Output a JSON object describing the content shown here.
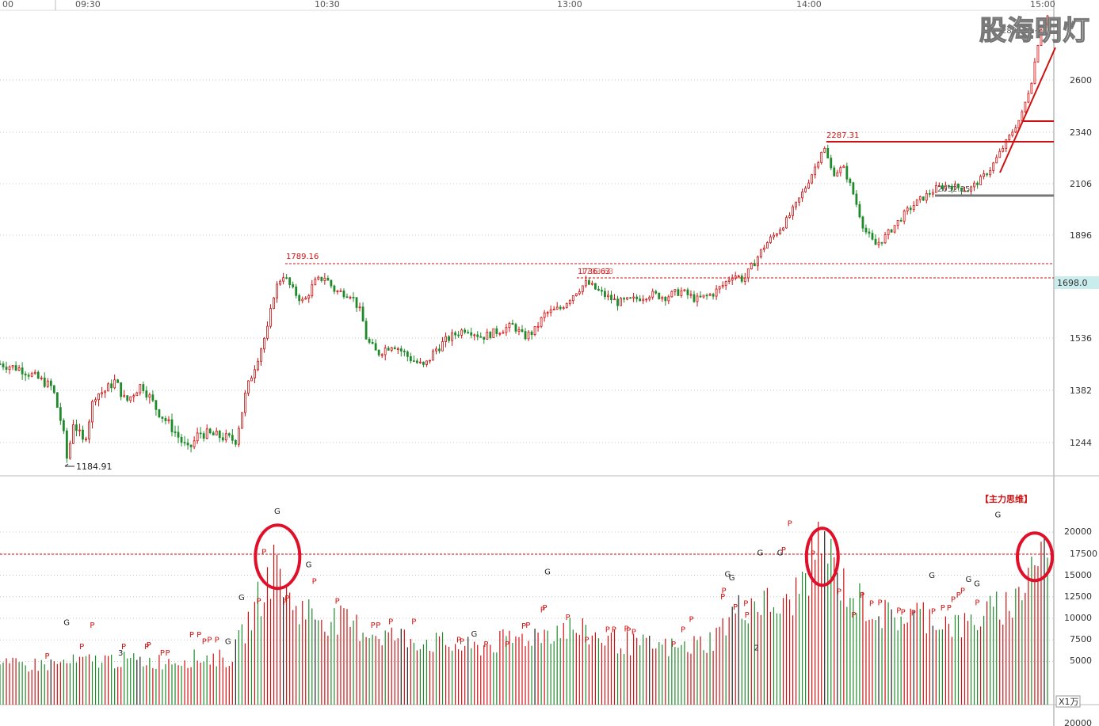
{
  "watermark": "股海明灯",
  "chart_data": {
    "type": "candlestick",
    "time_labels": [
      "00",
      "09:30",
      "10:30",
      "13:00",
      "14:00",
      "15:00"
    ],
    "price_axis": {
      "ticks": [
        1244,
        1382,
        1536,
        1896,
        2106,
        2340,
        2600
      ],
      "min": 1140,
      "max": 2950,
      "current_label": "1698.0"
    },
    "price_annotations": {
      "low": "1184.91",
      "high1": "1789.16",
      "mid_level": "1736.63",
      "mid_level2": "1733.63",
      "high2": "2287.31",
      "support": "2052.35",
      "top": "2885.31→"
    },
    "price_path": [
      {
        "t": 0,
        "p": 1460
      },
      {
        "t": 0.02,
        "p": 1445
      },
      {
        "t": 0.04,
        "p": 1410
      },
      {
        "t": 0.05,
        "p": 1390
      },
      {
        "t": 0.06,
        "p": 1280
      },
      {
        "t": 0.064,
        "p": 1190
      },
      {
        "t": 0.07,
        "p": 1300
      },
      {
        "t": 0.08,
        "p": 1240
      },
      {
        "t": 0.09,
        "p": 1370
      },
      {
        "t": 0.1,
        "p": 1380
      },
      {
        "t": 0.11,
        "p": 1410
      },
      {
        "t": 0.12,
        "p": 1350
      },
      {
        "t": 0.135,
        "p": 1400
      },
      {
        "t": 0.15,
        "p": 1330
      },
      {
        "t": 0.165,
        "p": 1280
      },
      {
        "t": 0.18,
        "p": 1220
      },
      {
        "t": 0.19,
        "p": 1270
      },
      {
        "t": 0.21,
        "p": 1260
      },
      {
        "t": 0.225,
        "p": 1250
      },
      {
        "t": 0.235,
        "p": 1380
      },
      {
        "t": 0.245,
        "p": 1470
      },
      {
        "t": 0.255,
        "p": 1560
      },
      {
        "t": 0.262,
        "p": 1700
      },
      {
        "t": 0.27,
        "p": 1760
      },
      {
        "t": 0.28,
        "p": 1700
      },
      {
        "t": 0.29,
        "p": 1660
      },
      {
        "t": 0.3,
        "p": 1730
      },
      {
        "t": 0.31,
        "p": 1750
      },
      {
        "t": 0.32,
        "p": 1700
      },
      {
        "t": 0.335,
        "p": 1690
      },
      {
        "t": 0.345,
        "p": 1620
      },
      {
        "t": 0.35,
        "p": 1530
      },
      {
        "t": 0.36,
        "p": 1490
      },
      {
        "t": 0.375,
        "p": 1520
      },
      {
        "t": 0.39,
        "p": 1480
      },
      {
        "t": 0.405,
        "p": 1450
      },
      {
        "t": 0.415,
        "p": 1500
      },
      {
        "t": 0.43,
        "p": 1540
      },
      {
        "t": 0.445,
        "p": 1570
      },
      {
        "t": 0.46,
        "p": 1540
      },
      {
        "t": 0.475,
        "p": 1560
      },
      {
        "t": 0.49,
        "p": 1580
      },
      {
        "t": 0.5,
        "p": 1540
      },
      {
        "t": 0.51,
        "p": 1560
      },
      {
        "t": 0.52,
        "p": 1620
      },
      {
        "t": 0.535,
        "p": 1640
      },
      {
        "t": 0.55,
        "p": 1700
      },
      {
        "t": 0.56,
        "p": 1730
      },
      {
        "t": 0.575,
        "p": 1690
      },
      {
        "t": 0.59,
        "p": 1660
      },
      {
        "t": 0.605,
        "p": 1670
      },
      {
        "t": 0.62,
        "p": 1690
      },
      {
        "t": 0.635,
        "p": 1680
      },
      {
        "t": 0.65,
        "p": 1700
      },
      {
        "t": 0.665,
        "p": 1670
      },
      {
        "t": 0.68,
        "p": 1690
      },
      {
        "t": 0.69,
        "p": 1720
      },
      {
        "t": 0.7,
        "p": 1760
      },
      {
        "t": 0.71,
        "p": 1740
      },
      {
        "t": 0.72,
        "p": 1800
      },
      {
        "t": 0.73,
        "p": 1860
      },
      {
        "t": 0.74,
        "p": 1900
      },
      {
        "t": 0.75,
        "p": 1950
      },
      {
        "t": 0.76,
        "p": 2020
      },
      {
        "t": 0.77,
        "p": 2100
      },
      {
        "t": 0.78,
        "p": 2200
      },
      {
        "t": 0.786,
        "p": 2280
      },
      {
        "t": 0.795,
        "p": 2150
      },
      {
        "t": 0.805,
        "p": 2180
      },
      {
        "t": 0.815,
        "p": 2060
      },
      {
        "t": 0.825,
        "p": 1920
      },
      {
        "t": 0.835,
        "p": 1860
      },
      {
        "t": 0.845,
        "p": 1890
      },
      {
        "t": 0.855,
        "p": 1940
      },
      {
        "t": 0.865,
        "p": 1990
      },
      {
        "t": 0.875,
        "p": 2030
      },
      {
        "t": 0.885,
        "p": 2060
      },
      {
        "t": 0.895,
        "p": 2090
      },
      {
        "t": 0.905,
        "p": 2100
      },
      {
        "t": 0.915,
        "p": 2090
      },
      {
        "t": 0.925,
        "p": 2080
      },
      {
        "t": 0.935,
        "p": 2120
      },
      {
        "t": 0.945,
        "p": 2170
      },
      {
        "t": 0.955,
        "p": 2250
      },
      {
        "t": 0.965,
        "p": 2330
      },
      {
        "t": 0.975,
        "p": 2420
      },
      {
        "t": 0.985,
        "p": 2600
      },
      {
        "t": 0.993,
        "p": 2820
      },
      {
        "t": 1,
        "p": 2880
      }
    ],
    "volume_axis": {
      "ticks": [
        5000,
        7500,
        10000,
        12500,
        15000,
        17500,
        20000
      ],
      "tick_labels": [
        "5000",
        "7500",
        "10000",
        "12500",
        "15000",
        "17500",
        "20000"
      ],
      "unit": "X1万",
      "min": 0,
      "max": 25000,
      "bottom_cut_label": "20000"
    },
    "volume_title": "【主力思维】",
    "volume_path": [
      {
        "t": 0,
        "v": 4500
      },
      {
        "t": 0.05,
        "v": 4700
      },
      {
        "t": 0.1,
        "v": 5200
      },
      {
        "t": 0.15,
        "v": 5000
      },
      {
        "t": 0.2,
        "v": 5500
      },
      {
        "t": 0.22,
        "v": 5200
      },
      {
        "t": 0.235,
        "v": 9000
      },
      {
        "t": 0.25,
        "v": 13000
      },
      {
        "t": 0.26,
        "v": 15500
      },
      {
        "t": 0.265,
        "v": 17000
      },
      {
        "t": 0.275,
        "v": 12000
      },
      {
        "t": 0.29,
        "v": 11000
      },
      {
        "t": 0.31,
        "v": 10000
      },
      {
        "t": 0.33,
        "v": 9500
      },
      {
        "t": 0.36,
        "v": 8200
      },
      {
        "t": 0.4,
        "v": 7500
      },
      {
        "t": 0.45,
        "v": 6500
      },
      {
        "t": 0.5,
        "v": 7800
      },
      {
        "t": 0.54,
        "v": 9000
      },
      {
        "t": 0.56,
        "v": 8200
      },
      {
        "t": 0.6,
        "v": 7000
      },
      {
        "t": 0.65,
        "v": 6500
      },
      {
        "t": 0.68,
        "v": 7500
      },
      {
        "t": 0.7,
        "v": 10500
      },
      {
        "t": 0.72,
        "v": 12000
      },
      {
        "t": 0.75,
        "v": 11000
      },
      {
        "t": 0.77,
        "v": 15000
      },
      {
        "t": 0.785,
        "v": 19500
      },
      {
        "t": 0.8,
        "v": 14500
      },
      {
        "t": 0.82,
        "v": 12000
      },
      {
        "t": 0.85,
        "v": 10000
      },
      {
        "t": 0.88,
        "v": 10500
      },
      {
        "t": 0.92,
        "v": 9000
      },
      {
        "t": 0.95,
        "v": 11000
      },
      {
        "t": 0.97,
        "v": 12000
      },
      {
        "t": 0.985,
        "v": 16500
      },
      {
        "t": 1,
        "v": 18500
      }
    ],
    "volume_reference_level": 17500,
    "volume_highlight_times": [
      0.265,
      0.785,
      0.99
    ],
    "signal_marks": [
      {
        "t": 0.045,
        "v": 5300,
        "s": "P"
      },
      {
        "t": 0.063,
        "v": 9200,
        "s": "G"
      },
      {
        "t": 0.078,
        "v": 6400,
        "s": "P"
      },
      {
        "t": 0.088,
        "v": 8900,
        "s": "P"
      },
      {
        "t": 0.115,
        "v": 5700,
        "s": "3"
      },
      {
        "t": 0.118,
        "v": 6400,
        "s": "P"
      },
      {
        "t": 0.14,
        "v": 6400,
        "s": "P"
      },
      {
        "t": 0.142,
        "v": 6600,
        "s": "P"
      },
      {
        "t": 0.155,
        "v": 5700,
        "s": "P"
      },
      {
        "t": 0.16,
        "v": 5700,
        "s": "P"
      },
      {
        "t": 0.183,
        "v": 7800,
        "s": "P"
      },
      {
        "t": 0.19,
        "v": 7800,
        "s": "P"
      },
      {
        "t": 0.195,
        "v": 7000,
        "s": "P"
      },
      {
        "t": 0.2,
        "v": 7200,
        "s": "P"
      },
      {
        "t": 0.207,
        "v": 7200,
        "s": "P"
      },
      {
        "t": 0.217,
        "v": 7000,
        "s": "G"
      },
      {
        "t": 0.23,
        "v": 12100,
        "s": "G"
      },
      {
        "t": 0.247,
        "v": 11700,
        "s": "P"
      },
      {
        "t": 0.252,
        "v": 17400,
        "s": "P"
      },
      {
        "t": 0.264,
        "v": 22100,
        "s": "G"
      },
      {
        "t": 0.272,
        "v": 11600,
        "s": "P"
      },
      {
        "t": 0.274,
        "v": 12000,
        "s": "P"
      },
      {
        "t": 0.294,
        "v": 15900,
        "s": "G"
      },
      {
        "t": 0.3,
        "v": 14000,
        "s": "P"
      },
      {
        "t": 0.322,
        "v": 11700,
        "s": "P"
      },
      {
        "t": 0.356,
        "v": 8900,
        "s": "P"
      },
      {
        "t": 0.361,
        "v": 8900,
        "s": "P"
      },
      {
        "t": 0.373,
        "v": 9300,
        "s": "P"
      },
      {
        "t": 0.395,
        "v": 9300,
        "s": "P"
      },
      {
        "t": 0.438,
        "v": 7200,
        "s": "P"
      },
      {
        "t": 0.441,
        "v": 7000,
        "s": "P"
      },
      {
        "t": 0.452,
        "v": 7900,
        "s": "G"
      },
      {
        "t": 0.464,
        "v": 6700,
        "s": "P"
      },
      {
        "t": 0.484,
        "v": 6700,
        "s": "P"
      },
      {
        "t": 0.5,
        "v": 8800,
        "s": "P"
      },
      {
        "t": 0.504,
        "v": 8900,
        "s": "P"
      },
      {
        "t": 0.518,
        "v": 10700,
        "s": "P"
      },
      {
        "t": 0.52,
        "v": 10900,
        "s": "P"
      },
      {
        "t": 0.522,
        "v": 15100,
        "s": "G"
      },
      {
        "t": 0.542,
        "v": 9800,
        "s": "P"
      },
      {
        "t": 0.56,
        "v": 7200,
        "s": "P"
      },
      {
        "t": 0.58,
        "v": 8400,
        "s": "P"
      },
      {
        "t": 0.586,
        "v": 8400,
        "s": "P"
      },
      {
        "t": 0.598,
        "v": 8500,
        "s": "P"
      },
      {
        "t": 0.6,
        "v": 8300,
        "s": "P"
      },
      {
        "t": 0.605,
        "v": 8100,
        "s": "P"
      },
      {
        "t": 0.643,
        "v": 6700,
        "s": "P"
      },
      {
        "t": 0.652,
        "v": 8400,
        "s": "P"
      },
      {
        "t": 0.66,
        "v": 9600,
        "s": "P"
      },
      {
        "t": 0.691,
        "v": 12900,
        "s": "P"
      },
      {
        "t": 0.694,
        "v": 14800,
        "s": "G"
      },
      {
        "t": 0.698,
        "v": 14400,
        "s": "G"
      },
      {
        "t": 0.69,
        "v": 12200,
        "s": "P"
      },
      {
        "t": 0.702,
        "v": 11000,
        "s": "P"
      },
      {
        "t": 0.712,
        "v": 11400,
        "s": "P"
      },
      {
        "t": 0.713,
        "v": 10100,
        "s": "P"
      },
      {
        "t": 0.722,
        "v": 6300,
        "s": "2"
      },
      {
        "t": 0.725,
        "v": 17300,
        "s": "G"
      },
      {
        "t": 0.744,
        "v": 17300,
        "s": "G"
      },
      {
        "t": 0.748,
        "v": 17600,
        "s": "P"
      },
      {
        "t": 0.754,
        "v": 20700,
        "s": "P"
      },
      {
        "t": 0.776,
        "v": 17200,
        "s": "P"
      },
      {
        "t": 0.801,
        "v": 12800,
        "s": "P"
      },
      {
        "t": 0.815,
        "v": 10100,
        "s": "P"
      },
      {
        "t": 0.823,
        "v": 12400,
        "s": "P"
      },
      {
        "t": 0.832,
        "v": 11400,
        "s": "P"
      },
      {
        "t": 0.84,
        "v": 11500,
        "s": "P"
      },
      {
        "t": 0.858,
        "v": 10600,
        "s": "P"
      },
      {
        "t": 0.862,
        "v": 10400,
        "s": "P"
      },
      {
        "t": 0.872,
        "v": 10300,
        "s": "P"
      },
      {
        "t": 0.889,
        "v": 14700,
        "s": "G"
      },
      {
        "t": 0.891,
        "v": 10500,
        "s": "P"
      },
      {
        "t": 0.9,
        "v": 10900,
        "s": "P"
      },
      {
        "t": 0.906,
        "v": 10900,
        "s": "P"
      },
      {
        "t": 0.91,
        "v": 11900,
        "s": "P"
      },
      {
        "t": 0.915,
        "v": 12400,
        "s": "P"
      },
      {
        "t": 0.919,
        "v": 12900,
        "s": "P"
      },
      {
        "t": 0.924,
        "v": 14200,
        "s": "G"
      },
      {
        "t": 0.932,
        "v": 13700,
        "s": "G"
      },
      {
        "t": 0.933,
        "v": 11500,
        "s": "P"
      },
      {
        "t": 0.952,
        "v": 21700,
        "s": "G"
      }
    ]
  }
}
